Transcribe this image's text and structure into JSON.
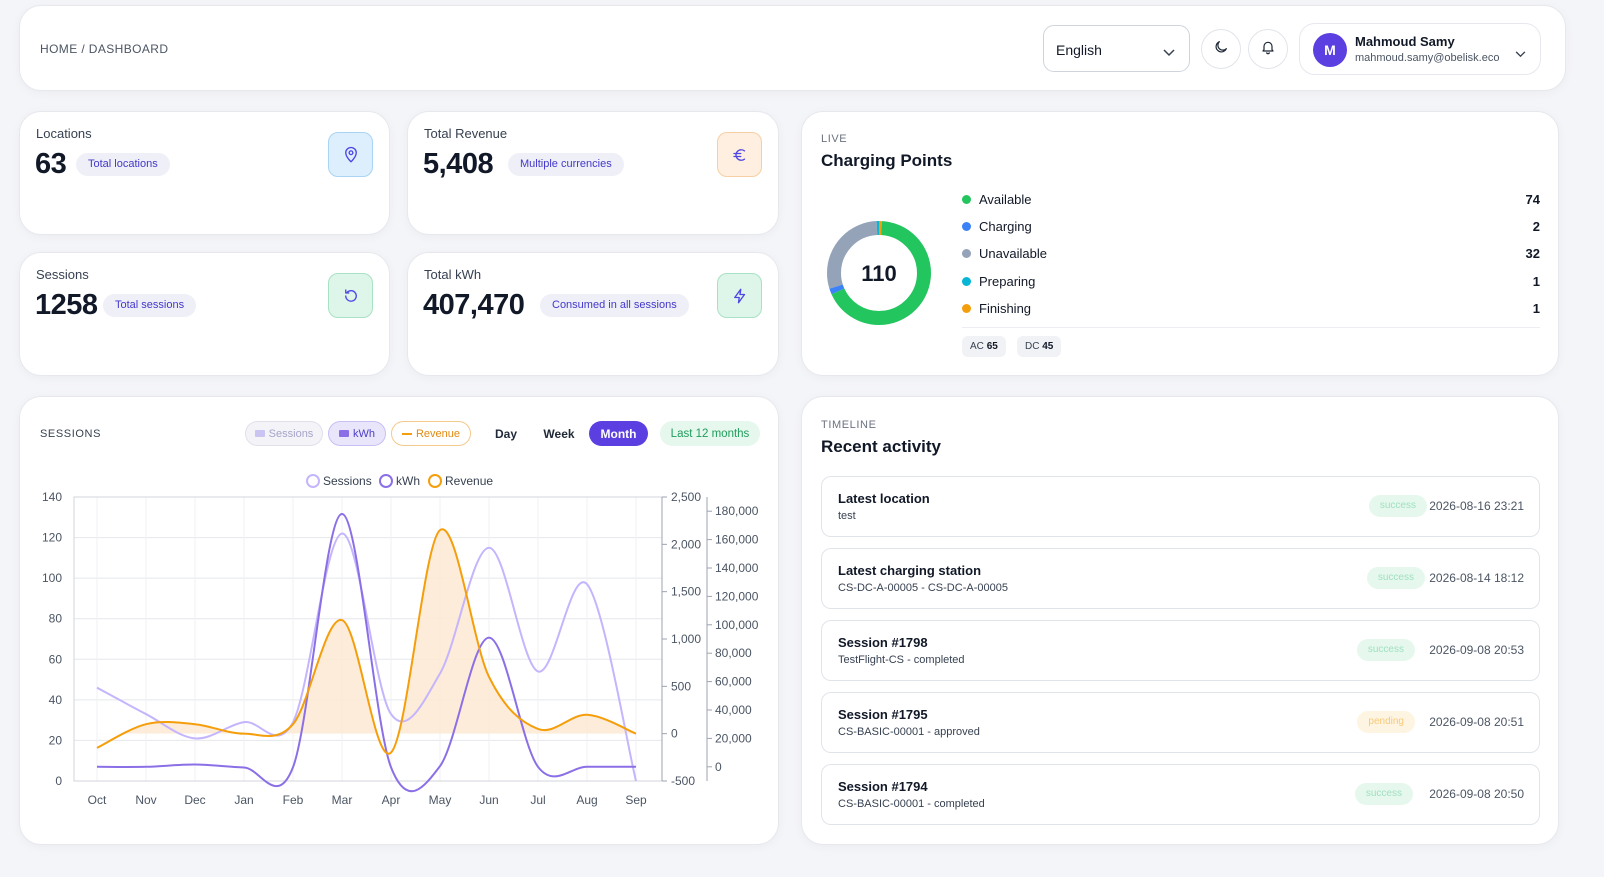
{
  "header": {
    "breadcrumb": "HOME / DASHBOARD",
    "language": "English",
    "user": {
      "initial": "M",
      "name": "Mahmoud Samy",
      "email": "mahmoud.samy@obelisk.eco"
    }
  },
  "stats": [
    {
      "label": "Locations",
      "value": "63",
      "pill": "Total locations",
      "icon": "location-pin-icon",
      "icon_bg": "#ddeffc",
      "icon_color": "#4f46e5"
    },
    {
      "label": "Total Revenue",
      "value": "5,408",
      "pill": "Multiple currencies",
      "icon": "euro-icon",
      "icon_bg": "#feefe0",
      "icon_color": "#4f46e5"
    },
    {
      "label": "Sessions",
      "value": "1258",
      "pill": "Total sessions",
      "icon": "refresh-icon",
      "icon_bg": "#def5ea",
      "icon_color": "#4f46e5"
    },
    {
      "label": "Total kWh",
      "value": "407,470",
      "pill": "Consumed in all sessions",
      "icon": "lightning-icon",
      "icon_bg": "#def5ea",
      "icon_color": "#4f46e5"
    }
  ],
  "charging": {
    "section": "LIVE",
    "title": "Charging Points",
    "total": "110",
    "statuses": [
      {
        "name": "Available",
        "value": "74",
        "color": "#22c55e"
      },
      {
        "name": "Charging",
        "value": "2",
        "color": "#3b82f6"
      },
      {
        "name": "Unavailable",
        "value": "32",
        "color": "#94a3b8"
      },
      {
        "name": "Preparing",
        "value": "1",
        "color": "#06b6d4"
      },
      {
        "name": "Finishing",
        "value": "1",
        "color": "#f59e0b"
      }
    ],
    "ac_label": "AC",
    "ac": "65",
    "dc_label": "DC",
    "dc": "45"
  },
  "sessions": {
    "section": "SESSIONS",
    "toggles": [
      "Sessions",
      "kWh",
      "Revenue"
    ],
    "periods": [
      "Day",
      "Week",
      "Month"
    ],
    "active_period": "Month",
    "range": "Last 12 months"
  },
  "chart_data": {
    "type": "line",
    "legend": [
      "Sessions",
      "kWh",
      "Revenue"
    ],
    "categories": [
      "Oct",
      "Nov",
      "Dec",
      "Jan",
      "Feb",
      "Mar",
      "Apr",
      "May",
      "Jun",
      "Jul",
      "Aug",
      "Sep"
    ],
    "series": [
      {
        "name": "Sessions",
        "axis": "y_left",
        "color": "#c4b5fd",
        "values": [
          46,
          33,
          21,
          29,
          29,
          122,
          33,
          53,
          115,
          54,
          97,
          0
        ]
      },
      {
        "name": "kWh",
        "axis": "y_right2",
        "color": "#8b6fe6",
        "values": [
          0,
          0,
          1600,
          -500,
          -300,
          178000,
          -300,
          500,
          91000,
          0,
          0,
          0
        ]
      },
      {
        "name": "Revenue",
        "axis": "y_right1",
        "color": "#f59e0b",
        "values": [
          -150,
          100,
          100,
          0,
          100,
          1200,
          -200,
          2150,
          600,
          50,
          200,
          0
        ]
      }
    ],
    "y_left": {
      "range": [
        0,
        140
      ],
      "ticks": [
        "0",
        "20",
        "40",
        "60",
        "80",
        "100",
        "120",
        "140"
      ]
    },
    "y_right1": {
      "range": [
        -500,
        2500
      ],
      "ticks": [
        "-500",
        "0",
        "500",
        "1,000",
        "1,500",
        "2,000",
        "2,500"
      ]
    },
    "y_right2": {
      "range": [
        -10000,
        190000
      ],
      "ticks": [
        "0",
        "20,000",
        "40,000",
        "60,000",
        "80,000",
        "100,000",
        "120,000",
        "140,000",
        "160,000",
        "180,000"
      ]
    }
  },
  "timeline": {
    "section": "TIMELINE",
    "title": "Recent activity",
    "items": [
      {
        "title": "Latest location",
        "sub": "test",
        "status": "success",
        "time": "2026-08-16 23:21"
      },
      {
        "title": "Latest charging station",
        "sub": "CS-DC-A-00005 - CS-DC-A-00005",
        "status": "success",
        "time": "2026-08-14 18:12"
      },
      {
        "title": "Session #1798",
        "sub": "TestFlight-CS - completed",
        "status": "success",
        "time": "2026-09-08 20:53"
      },
      {
        "title": "Session #1795",
        "sub": "CS-BASIC-00001 - approved",
        "status": "pending",
        "time": "2026-09-08 20:51"
      },
      {
        "title": "Session #1794",
        "sub": "CS-BASIC-00001 - completed",
        "status": "success",
        "time": "2026-09-08 20:50"
      }
    ]
  }
}
